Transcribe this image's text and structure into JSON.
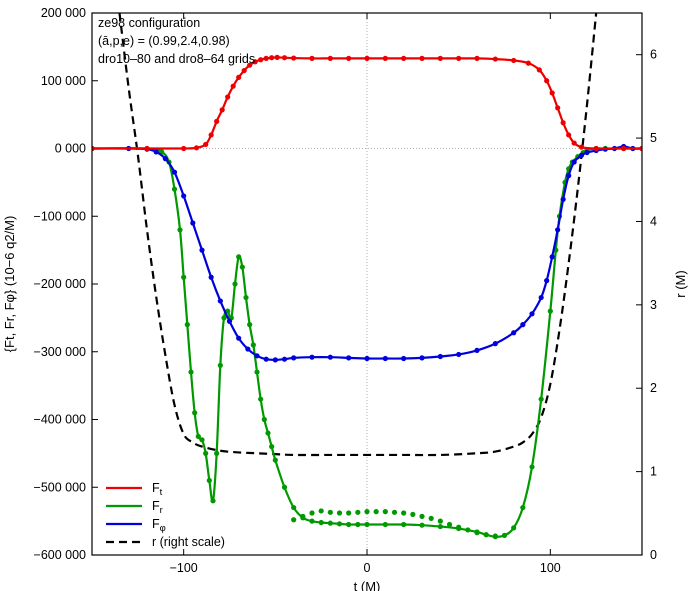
{
  "chart_data": {
    "type": "line",
    "annotation_lines": [
      "ze98 configuration",
      "(ā,p,e) = (0.99,2.4,0.98)",
      "dro10–80 and dro8–64 grids"
    ],
    "xlabel": "t (M)",
    "ylabel": "{Ft, Fr, Fφ}  (10−6 q2/M)",
    "y2label": "r (M)",
    "xlim": [
      -150,
      150
    ],
    "ylim": [
      -600000,
      200000
    ],
    "y2lim": [
      0,
      6.5
    ],
    "x_ticks": [
      "−100",
      "0",
      "100"
    ],
    "x_tick_values": [
      -100,
      0,
      100
    ],
    "y_ticks": [
      "200 000",
      "100 000",
      "0 000",
      "−100 000",
      "−200 000",
      "−300 000",
      "−400 000",
      "−500 000",
      "−600 000"
    ],
    "y_tick_values": [
      200000,
      100000,
      0,
      -100000,
      -200000,
      -300000,
      -400000,
      -500000,
      -600000
    ],
    "y2_ticks": [
      "0",
      "1",
      "2",
      "3",
      "4",
      "5",
      "6"
    ],
    "y2_tick_values": [
      0,
      1,
      2,
      3,
      4,
      5,
      6
    ],
    "grid": "zero axes dotted",
    "legend_position": "bottom-left",
    "legend": [
      {
        "label": "F",
        "sub": "t",
        "color": "#ee0000",
        "style": "solid"
      },
      {
        "label": "F",
        "sub": "r",
        "color": "#009900",
        "style": "solid"
      },
      {
        "label": "F",
        "sub": "φ",
        "color": "#0000dd",
        "style": "solid"
      },
      {
        "label": "r (right scale)",
        "sub": "",
        "color": "#000000",
        "style": "dashed"
      }
    ],
    "series": [
      {
        "name": "Ft",
        "axis": "left",
        "color": "#ee0000",
        "x": [
          -150,
          -120,
          -100,
          -93,
          -88,
          -85,
          -82,
          -79,
          -76,
          -73,
          -70,
          -67,
          -64,
          -61,
          -58,
          -55,
          -52,
          -49,
          -45,
          -40,
          -30,
          -20,
          -10,
          0,
          10,
          20,
          30,
          40,
          50,
          60,
          70,
          80,
          88,
          94,
          98,
          101,
          104,
          107,
          110,
          113,
          117,
          125,
          140,
          150
        ],
        "y": [
          0,
          0,
          0,
          1000,
          6000,
          20000,
          40000,
          57000,
          76000,
          92000,
          105000,
          115000,
          123000,
          128000,
          131000,
          133000,
          134000,
          134500,
          134000,
          133500,
          133000,
          133000,
          133000,
          133000,
          133000,
          133000,
          133000,
          133000,
          133000,
          133000,
          132000,
          130000,
          126000,
          116000,
          100000,
          82000,
          60000,
          38000,
          20000,
          8000,
          2000,
          0,
          0,
          0
        ]
      },
      {
        "name": "Fr",
        "axis": "left",
        "color": "#009900",
        "x": [
          -150,
          -120,
          -112,
          -108,
          -105,
          -102,
          -100,
          -98,
          -96,
          -94,
          -92,
          -90,
          -88,
          -86,
          -84,
          -82,
          -80,
          -78,
          -76,
          -74,
          -72,
          -70,
          -68,
          -66,
          -64,
          -62,
          -60,
          -58,
          -56,
          -54,
          -52,
          -50,
          -45,
          -40,
          -35,
          -30,
          -25,
          -20,
          -15,
          -10,
          -5,
          0,
          10,
          20,
          30,
          40,
          50,
          60,
          65,
          70,
          75,
          80,
          85,
          90,
          95,
          100,
          103,
          105,
          108,
          110,
          112,
          115,
          118,
          120,
          125,
          130,
          140,
          150
        ],
        "y": [
          0,
          0,
          -5000,
          -20000,
          -60000,
          -120000,
          -190000,
          -260000,
          -330000,
          -390000,
          -425000,
          -430000,
          -450000,
          -490000,
          -520000,
          -450000,
          -320000,
          -250000,
          -240000,
          -250000,
          -200000,
          -160000,
          -175000,
          -220000,
          -260000,
          -290000,
          -330000,
          -370000,
          -400000,
          -420000,
          -440000,
          -460000,
          -500000,
          -530000,
          -545000,
          -550000,
          -552000,
          -553000,
          -554000,
          -555000,
          -555000,
          -555000,
          -555000,
          -555000,
          -556000,
          -558000,
          -561000,
          -566000,
          -570000,
          -573000,
          -571000,
          -560000,
          -530000,
          -470000,
          -370000,
          -240000,
          -150000,
          -100000,
          -50000,
          -30000,
          -20000,
          -12000,
          -6000,
          -2000,
          0,
          0,
          0,
          0
        ]
      },
      {
        "name": "Fr (dro8–64, points)",
        "axis": "left",
        "color": "#009900",
        "markers_only": true,
        "x": [
          -40,
          -35,
          -30,
          -25,
          -20,
          -15,
          -10,
          -5,
          0,
          5,
          10,
          15,
          20,
          25,
          30,
          35,
          40,
          45,
          50,
          55,
          60,
          65,
          70
        ],
        "y": [
          -548000,
          -543000,
          -538000,
          -535000,
          -537000,
          -538000,
          -538000,
          -537000,
          -536000,
          -536000,
          -536000,
          -537000,
          -538000,
          -540000,
          -543000,
          -546000,
          -550000,
          -555000,
          -559000,
          -563000,
          -567000,
          -570000,
          -572000
        ]
      },
      {
        "name": "Fφ",
        "axis": "left",
        "color": "#0000dd",
        "x": [
          -150,
          -130,
          -120,
          -115,
          -110,
          -105,
          -100,
          -95,
          -90,
          -85,
          -80,
          -75,
          -70,
          -65,
          -60,
          -55,
          -50,
          -45,
          -40,
          -30,
          -20,
          -10,
          0,
          10,
          20,
          30,
          40,
          50,
          60,
          70,
          80,
          85,
          90,
          95,
          98,
          101,
          104,
          107,
          110,
          113,
          117,
          120,
          125,
          130,
          135,
          140,
          145,
          150
        ],
        "y": [
          0,
          0,
          -1000,
          -5000,
          -15000,
          -35000,
          -70000,
          -110000,
          -150000,
          -190000,
          -225000,
          -255000,
          -280000,
          -296000,
          -306000,
          -311000,
          -312000,
          -311000,
          -309000,
          -308000,
          -308000,
          -309000,
          -310000,
          -310000,
          -310000,
          -309000,
          -307000,
          -304000,
          -298000,
          -288000,
          -272000,
          -260000,
          -244000,
          -220000,
          -195000,
          -160000,
          -120000,
          -75000,
          -40000,
          -20000,
          -10000,
          -6000,
          -3000,
          -1000,
          0,
          3000,
          0,
          0
        ]
      },
      {
        "name": "r",
        "axis": "right",
        "color": "#000000",
        "dashed": true,
        "x": [
          -135,
          -130,
          -125,
          -120,
          -115,
          -110,
          -105,
          -100,
          -95,
          -90,
          -80,
          -70,
          -60,
          -50,
          -40,
          -20,
          0,
          20,
          40,
          60,
          70,
          80,
          85,
          90,
          95,
          100,
          105,
          110,
          115,
          120,
          125
        ],
        "y": [
          6.5,
          5.6,
          4.8,
          3.9,
          3.1,
          2.4,
          1.8,
          1.45,
          1.35,
          1.3,
          1.25,
          1.23,
          1.22,
          1.21,
          1.2,
          1.2,
          1.2,
          1.2,
          1.2,
          1.22,
          1.24,
          1.3,
          1.35,
          1.45,
          1.65,
          2.05,
          2.7,
          3.5,
          4.4,
          5.4,
          6.5
        ]
      }
    ]
  }
}
